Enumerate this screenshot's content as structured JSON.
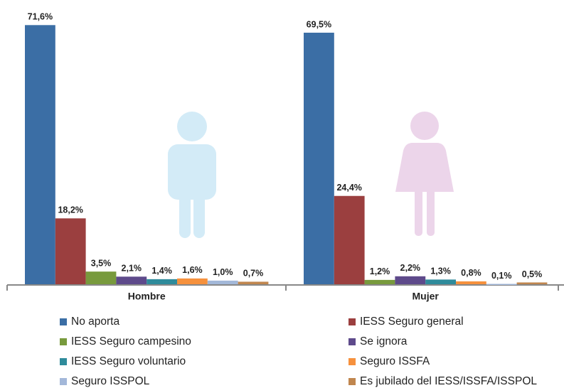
{
  "chart_data": {
    "type": "bar",
    "categories": [
      "Hombre",
      "Mujer"
    ],
    "series": [
      {
        "name": "No aporta",
        "color": "#3b6ea5",
        "values": [
          71.6,
          69.5
        ],
        "value_labels": [
          "71,6%",
          "69,5%"
        ]
      },
      {
        "name": "IESS Seguro general",
        "color": "#9b3f3f",
        "values": [
          18.2,
          24.4
        ],
        "value_labels": [
          "18,2%",
          "24,4%"
        ]
      },
      {
        "name": "IESS Seguro campesino",
        "color": "#789a3d",
        "values": [
          3.5,
          1.2
        ],
        "value_labels": [
          "3,5%",
          "1,2%"
        ]
      },
      {
        "name": "Se ignora",
        "color": "#5e4a8b",
        "values": [
          2.1,
          2.2
        ],
        "value_labels": [
          "2,1%",
          "2,2%"
        ]
      },
      {
        "name": "IESS Seguro voluntario",
        "color": "#2f8b9b",
        "values": [
          1.4,
          1.3
        ],
        "value_labels": [
          "1,4%",
          "1,3%"
        ]
      },
      {
        "name": "Seguro ISSFA",
        "color": "#f6913d",
        "values": [
          1.6,
          0.8
        ],
        "value_labels": [
          "1,6%",
          "0,8%"
        ]
      },
      {
        "name": "Seguro ISSPOL",
        "color": "#a3b8d9",
        "values": [
          1.0,
          0.1
        ],
        "value_labels": [
          "1,0%",
          "0,1%"
        ]
      },
      {
        "name": "Es jubilado del IESS/ISSFA/ISSPOL",
        "color": "#c0864e",
        "values": [
          0.7,
          0.5
        ],
        "value_labels": [
          "0,7%",
          "0,5%"
        ]
      }
    ],
    "ylim": [
      0,
      75
    ]
  }
}
